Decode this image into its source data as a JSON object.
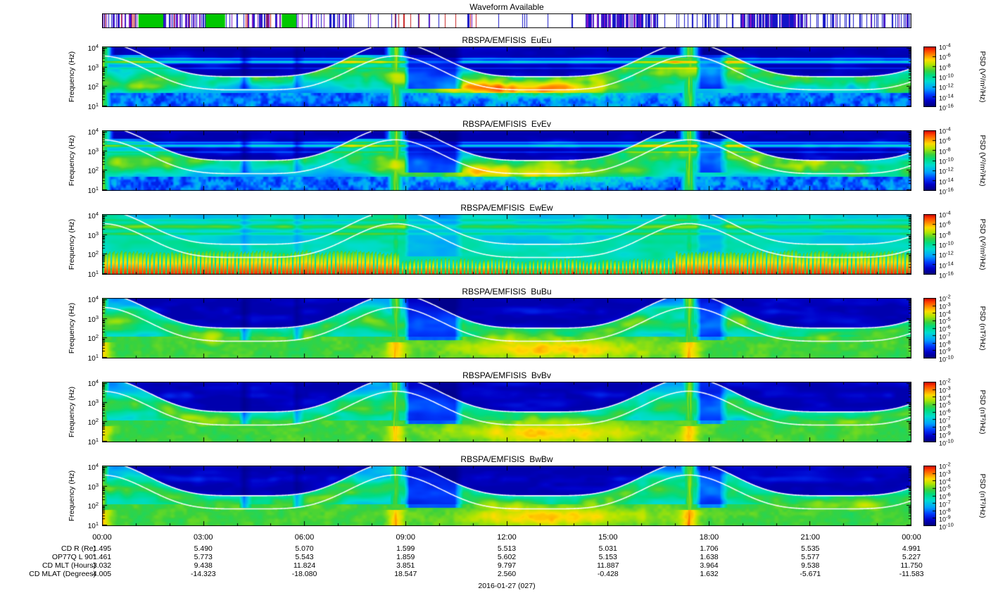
{
  "waveform_bar": {
    "title": "Waveform Available",
    "tick_colors": {
      "blue": "#1414c8",
      "purple": "#7d14c8",
      "green": "#00c800",
      "red": "#c81e1e"
    },
    "segments": [
      {
        "start": 0.0,
        "end": 0.045,
        "density": 0.5,
        "colors": [
          "blue",
          "purple",
          "blue",
          "red",
          "purple"
        ]
      },
      {
        "start": 0.045,
        "end": 0.076,
        "solid": "green"
      },
      {
        "start": 0.076,
        "end": 0.128,
        "density": 0.5,
        "colors": [
          "blue",
          "purple",
          "blue",
          "purple",
          "red"
        ]
      },
      {
        "start": 0.128,
        "end": 0.152,
        "solid": "green"
      },
      {
        "start": 0.152,
        "end": 0.222,
        "density": 0.48,
        "colors": [
          "blue",
          "purple",
          "blue",
          "purple",
          "red"
        ]
      },
      {
        "start": 0.222,
        "end": 0.24,
        "solid": "green"
      },
      {
        "start": 0.24,
        "end": 0.31,
        "density": 0.42,
        "colors": [
          "blue",
          "purple",
          "blue"
        ]
      },
      {
        "start": 0.31,
        "end": 0.48,
        "density": 0.1,
        "colors": [
          "blue",
          "purple",
          "red",
          "blue"
        ]
      },
      {
        "start": 0.48,
        "end": 0.598,
        "density": 0.08,
        "colors": [
          "blue"
        ]
      },
      {
        "start": 0.598,
        "end": 0.682,
        "density": 0.72,
        "colors": [
          "blue",
          "blue",
          "purple"
        ]
      },
      {
        "start": 0.682,
        "end": 0.788,
        "density": 0.25,
        "colors": [
          "blue"
        ]
      },
      {
        "start": 0.788,
        "end": 0.868,
        "density": 0.85,
        "colors": [
          "blue",
          "blue",
          "purple"
        ]
      },
      {
        "start": 0.868,
        "end": 1.0,
        "density": 0.28,
        "colors": [
          "blue",
          "purple",
          "blue"
        ]
      }
    ]
  },
  "chart_data": {
    "type": "heatmap",
    "description": "RBSP-A EMFISIS WFR daily summary: six power-spectral-density spectrogram panels (electric EuEu, EvEv, EwEw and magnetic BuBu, BvBv, BwBw) versus time and frequency, with white gyrofrequency-related overlay curves peaking at each perigee.",
    "x_axis": {
      "tick_labels": [
        "00:00",
        "03:00",
        "06:00",
        "09:00",
        "12:00",
        "15:00",
        "18:00",
        "21:00",
        "00:00"
      ],
      "span_hours": 24,
      "minor_tick_interval_hours": 1,
      "date_label": "2016-01-27 (027)"
    },
    "y_axis": {
      "label": "Frequency (Hz)",
      "scale": "log",
      "tick_labels": [
        "10^1",
        "10^2",
        "10^3",
        "10^4"
      ],
      "range_hz": [
        10,
        10000
      ]
    },
    "overlay_curves": {
      "color": "#ffffff",
      "count_per_panel": 2,
      "peaks_at_times": [
        "00:00",
        "08:40",
        "17:25"
      ]
    },
    "panels": [
      {
        "id": "EuEu",
        "title": "RBSPA/EMFISIS  EuEu",
        "render_kind": "E",
        "colorbar": {
          "label": "PSD (V²/m²/Hz)",
          "ticks": [
            "10^-4",
            "10^-6",
            "10^-8",
            "10^-10",
            "10^-12",
            "10^-14",
            "10^-16"
          ]
        }
      },
      {
        "id": "EvEv",
        "title": "RBSPA/EMFISIS  EvEv",
        "render_kind": "E",
        "colorbar": {
          "label": "PSD (V²/m²/Hz)",
          "ticks": [
            "10^-4",
            "10^-6",
            "10^-8",
            "10^-10",
            "10^-12",
            "10^-14",
            "10^-16"
          ]
        }
      },
      {
        "id": "EwEw",
        "title": "RBSPA/EMFISIS  EwEw",
        "render_kind": "Ew",
        "colorbar": {
          "label": "PSD (V²/m²/Hz)",
          "ticks": [
            "10^-4",
            "10^-6",
            "10^-8",
            "10^-10",
            "10^-12",
            "10^-14",
            "10^-16"
          ]
        }
      },
      {
        "id": "BuBu",
        "title": "RBSPA/EMFISIS  BuBu",
        "render_kind": "B",
        "colorbar": {
          "label": "PSD (nT²/Hz)",
          "ticks": [
            "10^-2",
            "10^-3",
            "10^-4",
            "10^-5",
            "10^-6",
            "10^-7",
            "10^-8",
            "10^-9",
            "10^-10"
          ]
        }
      },
      {
        "id": "BvBv",
        "title": "RBSPA/EMFISIS  BvBv",
        "render_kind": "B",
        "colorbar": {
          "label": "PSD (nT²/Hz)",
          "ticks": [
            "10^-2",
            "10^-3",
            "10^-4",
            "10^-5",
            "10^-6",
            "10^-7",
            "10^-8",
            "10^-9",
            "10^-10"
          ]
        }
      },
      {
        "id": "BwBw",
        "title": "RBSPA/EMFISIS  BwBw",
        "render_kind": "B",
        "colorbar": {
          "label": "PSD (nT²/Hz)",
          "ticks": [
            "10^-2",
            "10^-3",
            "10^-4",
            "10^-5",
            "10^-6",
            "10^-7",
            "10^-8",
            "10^-9",
            "10^-10"
          ]
        }
      }
    ],
    "ephemeris": {
      "rows": [
        {
          "label": "CD R (Re)",
          "values": [
            "1.495",
            "5.490",
            "5.070",
            "1.599",
            "5.513",
            "5.031",
            "1.706",
            "5.535",
            "4.991"
          ]
        },
        {
          "label": "OP77Q L 90°",
          "values": [
            "1.461",
            "5.773",
            "5.543",
            "1.859",
            "5.602",
            "5.153",
            "1.638",
            "5.577",
            "5.227"
          ]
        },
        {
          "label": "CD MLT (Hours)",
          "values": [
            "3.032",
            "9.438",
            "11.824",
            "3.851",
            "9.797",
            "11.887",
            "3.964",
            "9.538",
            "11.750"
          ]
        },
        {
          "label": "CD MLAT (Degrees)",
          "values": [
            "4.005",
            "-14.323",
            "-18.080",
            "18.547",
            "2.560",
            "-0.428",
            "1.632",
            "-5.671",
            "-11.583"
          ]
        }
      ]
    }
  }
}
